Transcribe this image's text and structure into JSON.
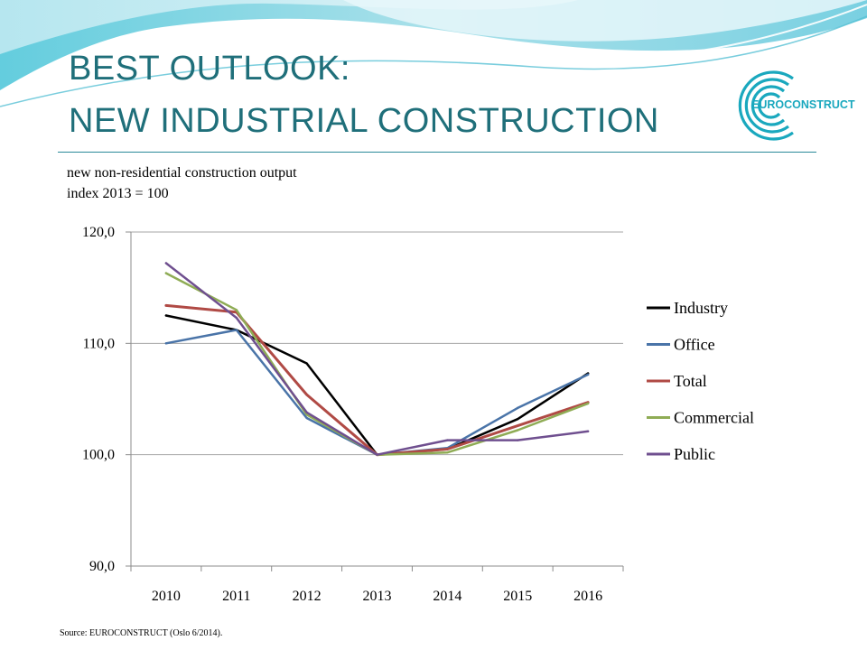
{
  "header": {
    "title_line1": "BEST OUTLOOK:",
    "title_line2": "NEW INDUSTRIAL CONSTRUCTION",
    "logo_text": "EUROCONSTRUCT"
  },
  "subtitle": {
    "line1": "new non-residential construction output",
    "line2": "index 2013 = 100"
  },
  "source": "Source: EUROCONSTRUCT (Oslo 6/2014).",
  "colors": {
    "title": "#1f6f7a",
    "Industry": "#000000",
    "Office": "#4a74a8",
    "Total": "#b04a45",
    "Commercial": "#8fac55",
    "Public": "#6f4f8f"
  },
  "chart_data": {
    "type": "line",
    "title": "",
    "xlabel": "",
    "ylabel": "",
    "ylim": [
      90,
      120
    ],
    "yticks": [
      "90,0",
      "100,0",
      "110,0",
      "120,0"
    ],
    "ytick_values": [
      90,
      100,
      110,
      120
    ],
    "x": [
      "2010",
      "2011",
      "2012",
      "2013",
      "2014",
      "2015",
      "2016"
    ],
    "grid": true,
    "legend_position": "right",
    "series": [
      {
        "name": "Industry",
        "values": [
          112.5,
          111.2,
          108.2,
          100.0,
          100.5,
          103.2,
          107.3
        ]
      },
      {
        "name": "Office",
        "values": [
          110.0,
          111.2,
          103.3,
          100.0,
          100.6,
          104.2,
          107.2
        ]
      },
      {
        "name": "Total",
        "values": [
          113.4,
          112.8,
          105.4,
          100.0,
          100.5,
          102.6,
          104.7
        ]
      },
      {
        "name": "Commercial",
        "values": [
          116.3,
          113.0,
          103.6,
          100.0,
          100.2,
          102.2,
          104.6
        ]
      },
      {
        "name": "Public",
        "values": [
          117.2,
          112.3,
          103.8,
          100.0,
          101.3,
          101.3,
          102.1
        ]
      }
    ]
  }
}
